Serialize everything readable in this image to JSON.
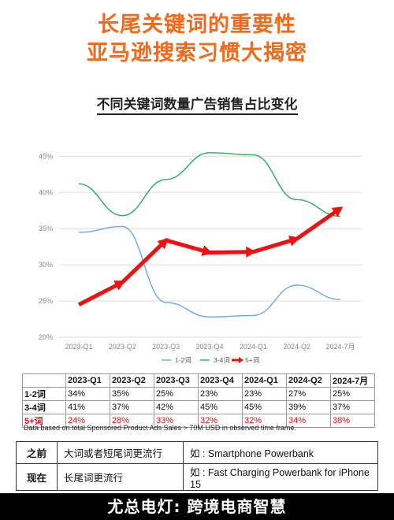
{
  "header": {
    "title_line1": "长尾关键词的重要性",
    "title_line2": "亚马逊搜索习惯大揭密",
    "subtitle": "不同关键词数量广告销售占比变化"
  },
  "chart_data": {
    "type": "line",
    "title": "不同关键词数量广告销售占比变化",
    "x": [
      "2023-Q1",
      "2023-Q2",
      "2023-Q3",
      "2023-Q4",
      "2024-Q1",
      "2024-Q2",
      "2024-7月"
    ],
    "yticks": [
      "20%",
      "25%",
      "30%",
      "35%",
      "40%",
      "45%"
    ],
    "ylim": [
      20,
      47
    ],
    "grid": true,
    "legend_position": "bottom",
    "series": [
      {
        "name": "1-2词",
        "values": [
          34.5,
          35.3,
          24.8,
          22.8,
          23.0,
          27.2,
          25.2
        ],
        "color": "#6fa8dc"
      },
      {
        "name": "3-4词",
        "values": [
          41.2,
          36.8,
          41.8,
          45.5,
          45.2,
          39.0,
          36.7
        ],
        "color": "#2daa5f"
      },
      {
        "name": "5+词",
        "values": [
          24.5,
          27.6,
          33.4,
          31.7,
          31.8,
          33.6,
          37.8
        ],
        "color": "#ee1111"
      }
    ]
  },
  "table": {
    "headers": [
      "",
      "2023-Q1",
      "2023-Q2",
      "2023-Q3",
      "2023-Q4",
      "2024-Q1",
      "2024-Q2",
      "2024-7月"
    ],
    "rows": [
      [
        "1-2词",
        "34%",
        "35%",
        "25%",
        "23%",
        "23%",
        "27%",
        "25%"
      ],
      [
        "3-4词",
        "41%",
        "37%",
        "42%",
        "45%",
        "45%",
        "39%",
        "37%"
      ],
      [
        "5+词",
        "24%",
        "28%",
        "33%",
        "32%",
        "32%",
        "34%",
        "38%"
      ]
    ]
  },
  "note": "Data based on total Sponsored Product Ads Sales > 70M USD in observed time frame.",
  "compare": {
    "rows": [
      {
        "label": "之前",
        "desc": "大词或者短尾词更流行",
        "example": "如 : Smartphone Powerbank"
      },
      {
        "label": "现在",
        "desc": "长尾词更流行",
        "example": "如 : Fast Charging Powerbank for iPhone 15"
      }
    ]
  },
  "footer": "尤总电灯: 跨境电商智慧"
}
